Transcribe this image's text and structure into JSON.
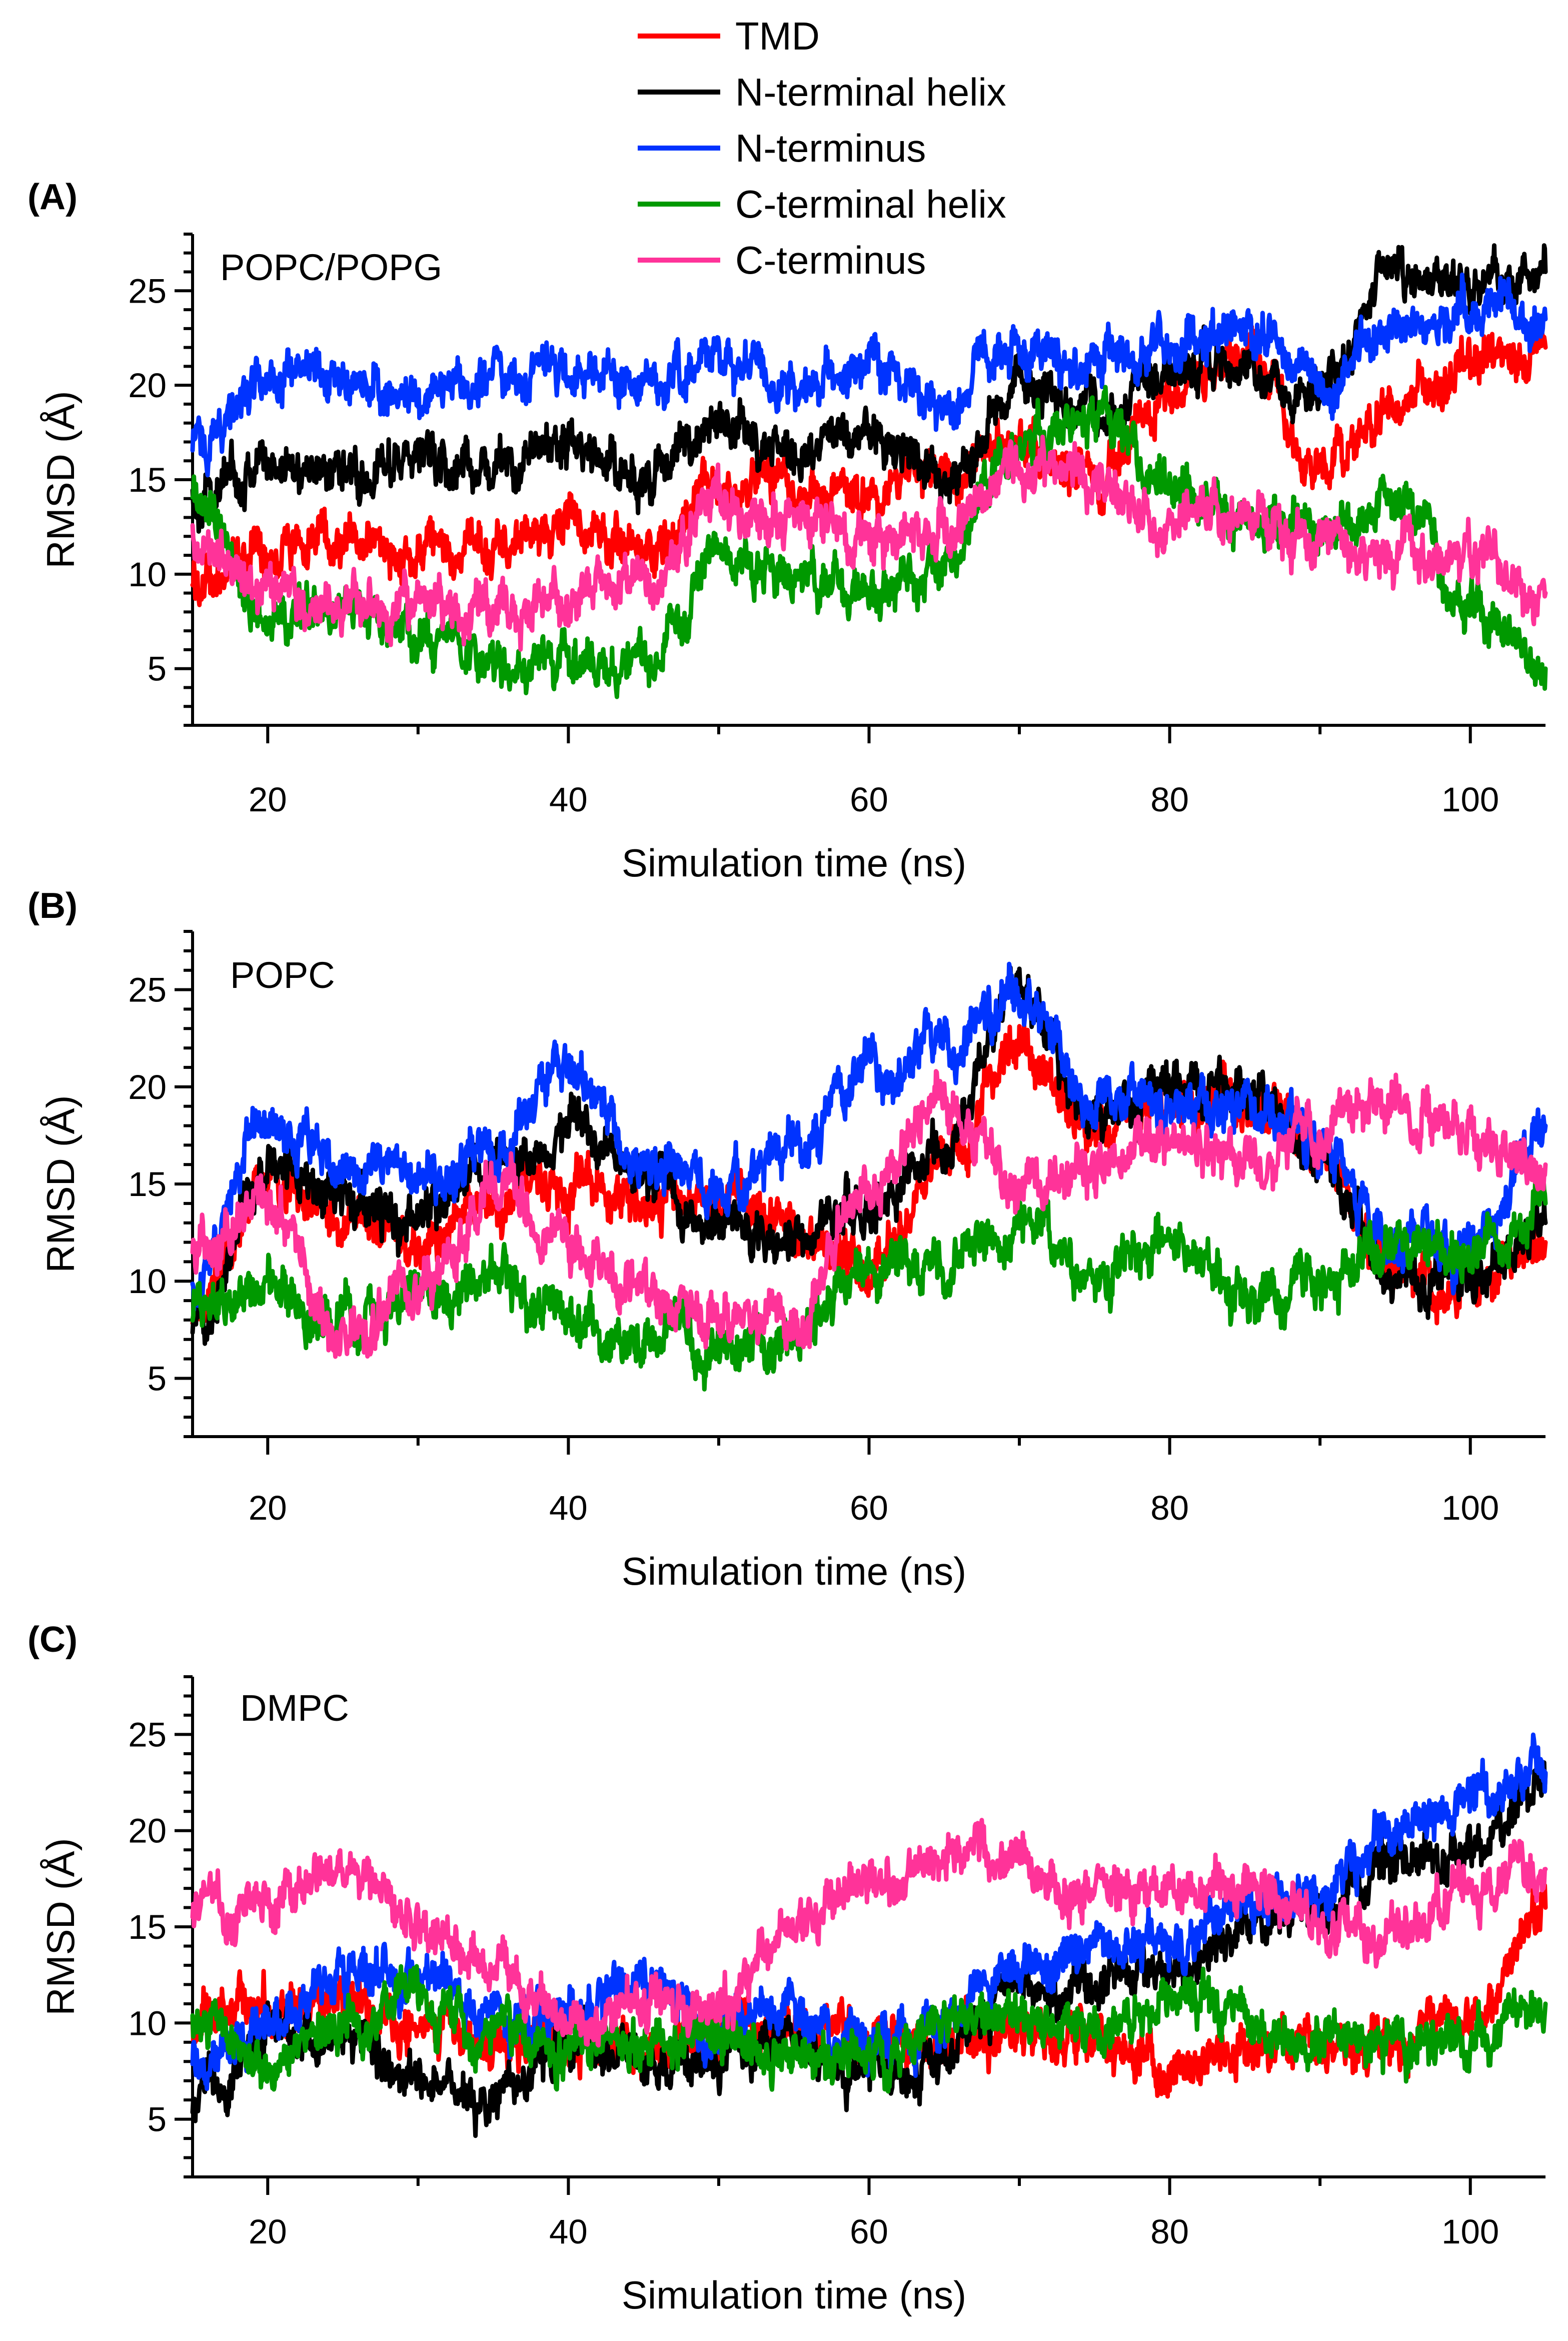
{
  "legend": [
    {
      "name": "TMD",
      "color": "#ff0000"
    },
    {
      "name": "N-terminal helix",
      "color": "#000000"
    },
    {
      "name": "N-terminus",
      "color": "#0033ff"
    },
    {
      "name": "C-terminal helix",
      "color": "#009900"
    },
    {
      "name": "C-terminus",
      "color": "#ff3399"
    }
  ],
  "chart_data": [
    {
      "type": "line",
      "panel_label": "(A)",
      "system_label": "POPC/POPG",
      "xlabel": "Simulation time (ns)",
      "ylabel": "RMSD (Å)",
      "xlim": [
        15,
        105
      ],
      "ylim": [
        2,
        28
      ],
      "xticks": [
        20,
        40,
        60,
        80,
        100
      ],
      "yticks": [
        5,
        10,
        15,
        20,
        25
      ],
      "x": [
        15,
        20,
        25,
        30,
        35,
        40,
        45,
        50,
        55,
        60,
        65,
        70,
        75,
        80,
        85,
        90,
        95,
        100,
        105
      ],
      "series": [
        {
          "name": "TMD",
          "color": "#ff0000",
          "values": [
            9.5,
            11.5,
            12,
            11,
            11.5,
            12.5,
            11,
            15,
            14.5,
            14,
            15,
            17,
            15,
            20,
            22,
            16,
            19,
            21,
            22
          ]
        },
        {
          "name": "N-terminal helix",
          "color": "#000000",
          "values": [
            14,
            16,
            15.5,
            16,
            15.5,
            17,
            15,
            18,
            16,
            17.5,
            15,
            20,
            19,
            21,
            21,
            20,
            26,
            25,
            26
          ]
        },
        {
          "name": "N-terminus",
          "color": "#0033ff",
          "values": [
            17,
            20,
            20.5,
            19.5,
            20.5,
            21,
            20,
            21.5,
            20,
            21,
            19,
            22,
            21,
            22,
            23,
            20,
            23,
            24,
            23.5
          ]
        },
        {
          "name": "C-terminal helix",
          "color": "#009900",
          "values": [
            14,
            8,
            8,
            7,
            5,
            5.5,
            5,
            11,
            10,
            9,
            10,
            17,
            18,
            15,
            13,
            12,
            14,
            8,
            5
          ]
        },
        {
          "name": "C-terminus",
          "color": "#ff3399",
          "values": [
            12,
            9,
            8,
            8.5,
            8,
            9,
            9,
            14,
            13,
            12,
            13,
            16,
            15,
            13,
            13,
            12,
            11,
            11,
            9
          ]
        }
      ]
    },
    {
      "type": "line",
      "panel_label": "(B)",
      "system_label": "POPC",
      "xlabel": "Simulation time (ns)",
      "ylabel": "RMSD (Å)",
      "xlim": [
        15,
        105
      ],
      "ylim": [
        2,
        28
      ],
      "xticks": [
        20,
        40,
        60,
        80,
        100
      ],
      "yticks": [
        5,
        10,
        15,
        20,
        25
      ],
      "x": [
        15,
        20,
        25,
        30,
        35,
        40,
        45,
        50,
        55,
        60,
        65,
        70,
        75,
        80,
        85,
        90,
        95,
        100,
        105
      ],
      "series": [
        {
          "name": "TMD",
          "color": "#ff0000",
          "values": [
            9,
            15,
            13,
            12,
            14,
            15,
            14,
            14,
            13,
            10,
            16,
            22,
            18,
            19,
            19,
            17,
            10,
            10,
            12
          ]
        },
        {
          "name": "N-terminal helix",
          "color": "#000000",
          "values": [
            8,
            16,
            14,
            13,
            16,
            18,
            15,
            13,
            12,
            14,
            17,
            25,
            18,
            20,
            20,
            16,
            10,
            10,
            13
          ]
        },
        {
          "name": "N-terminus",
          "color": "#0033ff",
          "values": [
            10,
            18,
            16,
            15,
            17,
            21,
            16,
            15,
            17,
            21,
            22,
            25,
            19,
            19,
            19,
            17,
            12,
            12,
            18
          ]
        },
        {
          "name": "C-terminal helix",
          "color": "#009900",
          "values": [
            9,
            9,
            8,
            9,
            10,
            8,
            7,
            6,
            7,
            11,
            11,
            13,
            10,
            12,
            9,
            10,
            12,
            11,
            14
          ]
        },
        {
          "name": "C-terminus",
          "color": "#ff3399",
          "values": [
            12,
            14,
            7,
            9,
            15,
            12,
            10,
            8,
            8,
            15,
            19,
            15,
            16,
            17,
            16,
            18,
            19,
            18,
            16
          ]
        }
      ]
    },
    {
      "type": "line",
      "panel_label": "(C)",
      "system_label": "DMPC",
      "xlabel": "Simulation time (ns)",
      "ylabel": "RMSD (Å)",
      "xlim": [
        15,
        105
      ],
      "ylim": [
        2,
        28
      ],
      "xticks": [
        20,
        40,
        60,
        80,
        100
      ],
      "yticks": [
        5,
        10,
        15,
        20,
        25
      ],
      "x": [
        15,
        20,
        25,
        30,
        35,
        40,
        45,
        50,
        55,
        60,
        65,
        70,
        75,
        80,
        85,
        90,
        95,
        100,
        105
      ],
      "series": [
        {
          "name": "TMD",
          "color": "#ff0000",
          "values": [
            10,
            11,
            11,
            10,
            9,
            9,
            9,
            9,
            10,
            9,
            9,
            9,
            9,
            8,
            9,
            9,
            9,
            10,
            16
          ]
        },
        {
          "name": "N-terminal helix",
          "color": "#000000",
          "values": [
            6,
            9,
            9,
            7,
            6,
            9,
            8,
            8,
            9,
            7,
            8,
            12,
            12,
            13,
            15,
            16,
            18,
            19,
            23
          ]
        },
        {
          "name": "N-terminus",
          "color": "#0033ff",
          "values": [
            8,
            10,
            13,
            13,
            10,
            11,
            12,
            10,
            10,
            9,
            10,
            13,
            14,
            14,
            16,
            17,
            20,
            22,
            23
          ]
        },
        {
          "name": "C-terminal helix",
          "color": "#009900",
          "values": [
            10,
            8,
            10,
            11,
            9,
            9,
            9,
            9,
            8,
            8,
            10,
            10,
            10,
            11,
            10,
            9,
            9,
            9,
            11
          ]
        },
        {
          "name": "C-terminus",
          "color": "#ff3399",
          "values": [
            16,
            16,
            18,
            15,
            13,
            10,
            11,
            11,
            15,
            17,
            19,
            18,
            17,
            17,
            17,
            15,
            15,
            17,
            18
          ]
        }
      ]
    }
  ]
}
